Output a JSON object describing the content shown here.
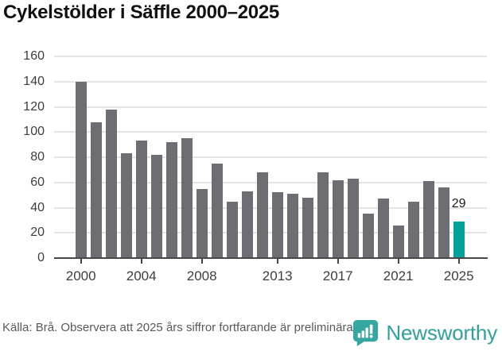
{
  "title": "Cykelstölder i Säffle 2000–2025",
  "chart_data": {
    "type": "bar",
    "x": [
      2000,
      2001,
      2002,
      2003,
      2004,
      2005,
      2006,
      2007,
      2008,
      2009,
      2010,
      2011,
      2012,
      2013,
      2014,
      2015,
      2016,
      2017,
      2018,
      2019,
      2020,
      2021,
      2022,
      2023,
      2024,
      2025
    ],
    "values": [
      140,
      108,
      118,
      83,
      93,
      82,
      92,
      95,
      55,
      75,
      45,
      53,
      68,
      52,
      51,
      48,
      68,
      62,
      63,
      35,
      47,
      26,
      45,
      61,
      56,
      29
    ],
    "title": "Cykelstölder i Säffle 2000–2025",
    "xlabel": "",
    "ylabel": "",
    "ylim": [
      0,
      160
    ],
    "y_ticks": [
      0,
      20,
      40,
      60,
      80,
      100,
      120,
      140,
      160
    ],
    "x_tick_years": [
      2000,
      2004,
      2008,
      2013,
      2017,
      2021,
      2025
    ],
    "grid": true,
    "legend": "none",
    "bar_color": "#6e6d73",
    "highlight_color": "#00a29a",
    "highlight_year": 2025,
    "annotation": {
      "year": 2025,
      "text": "29"
    }
  },
  "footer": {
    "source_text": "Källa: Brå. Observera att 2025 års siffror fortfarande är preliminära."
  },
  "branding": {
    "name": "Newsworthy",
    "color": "#2fa09a",
    "icon": "newsworthy-chart-bubble-icon"
  }
}
